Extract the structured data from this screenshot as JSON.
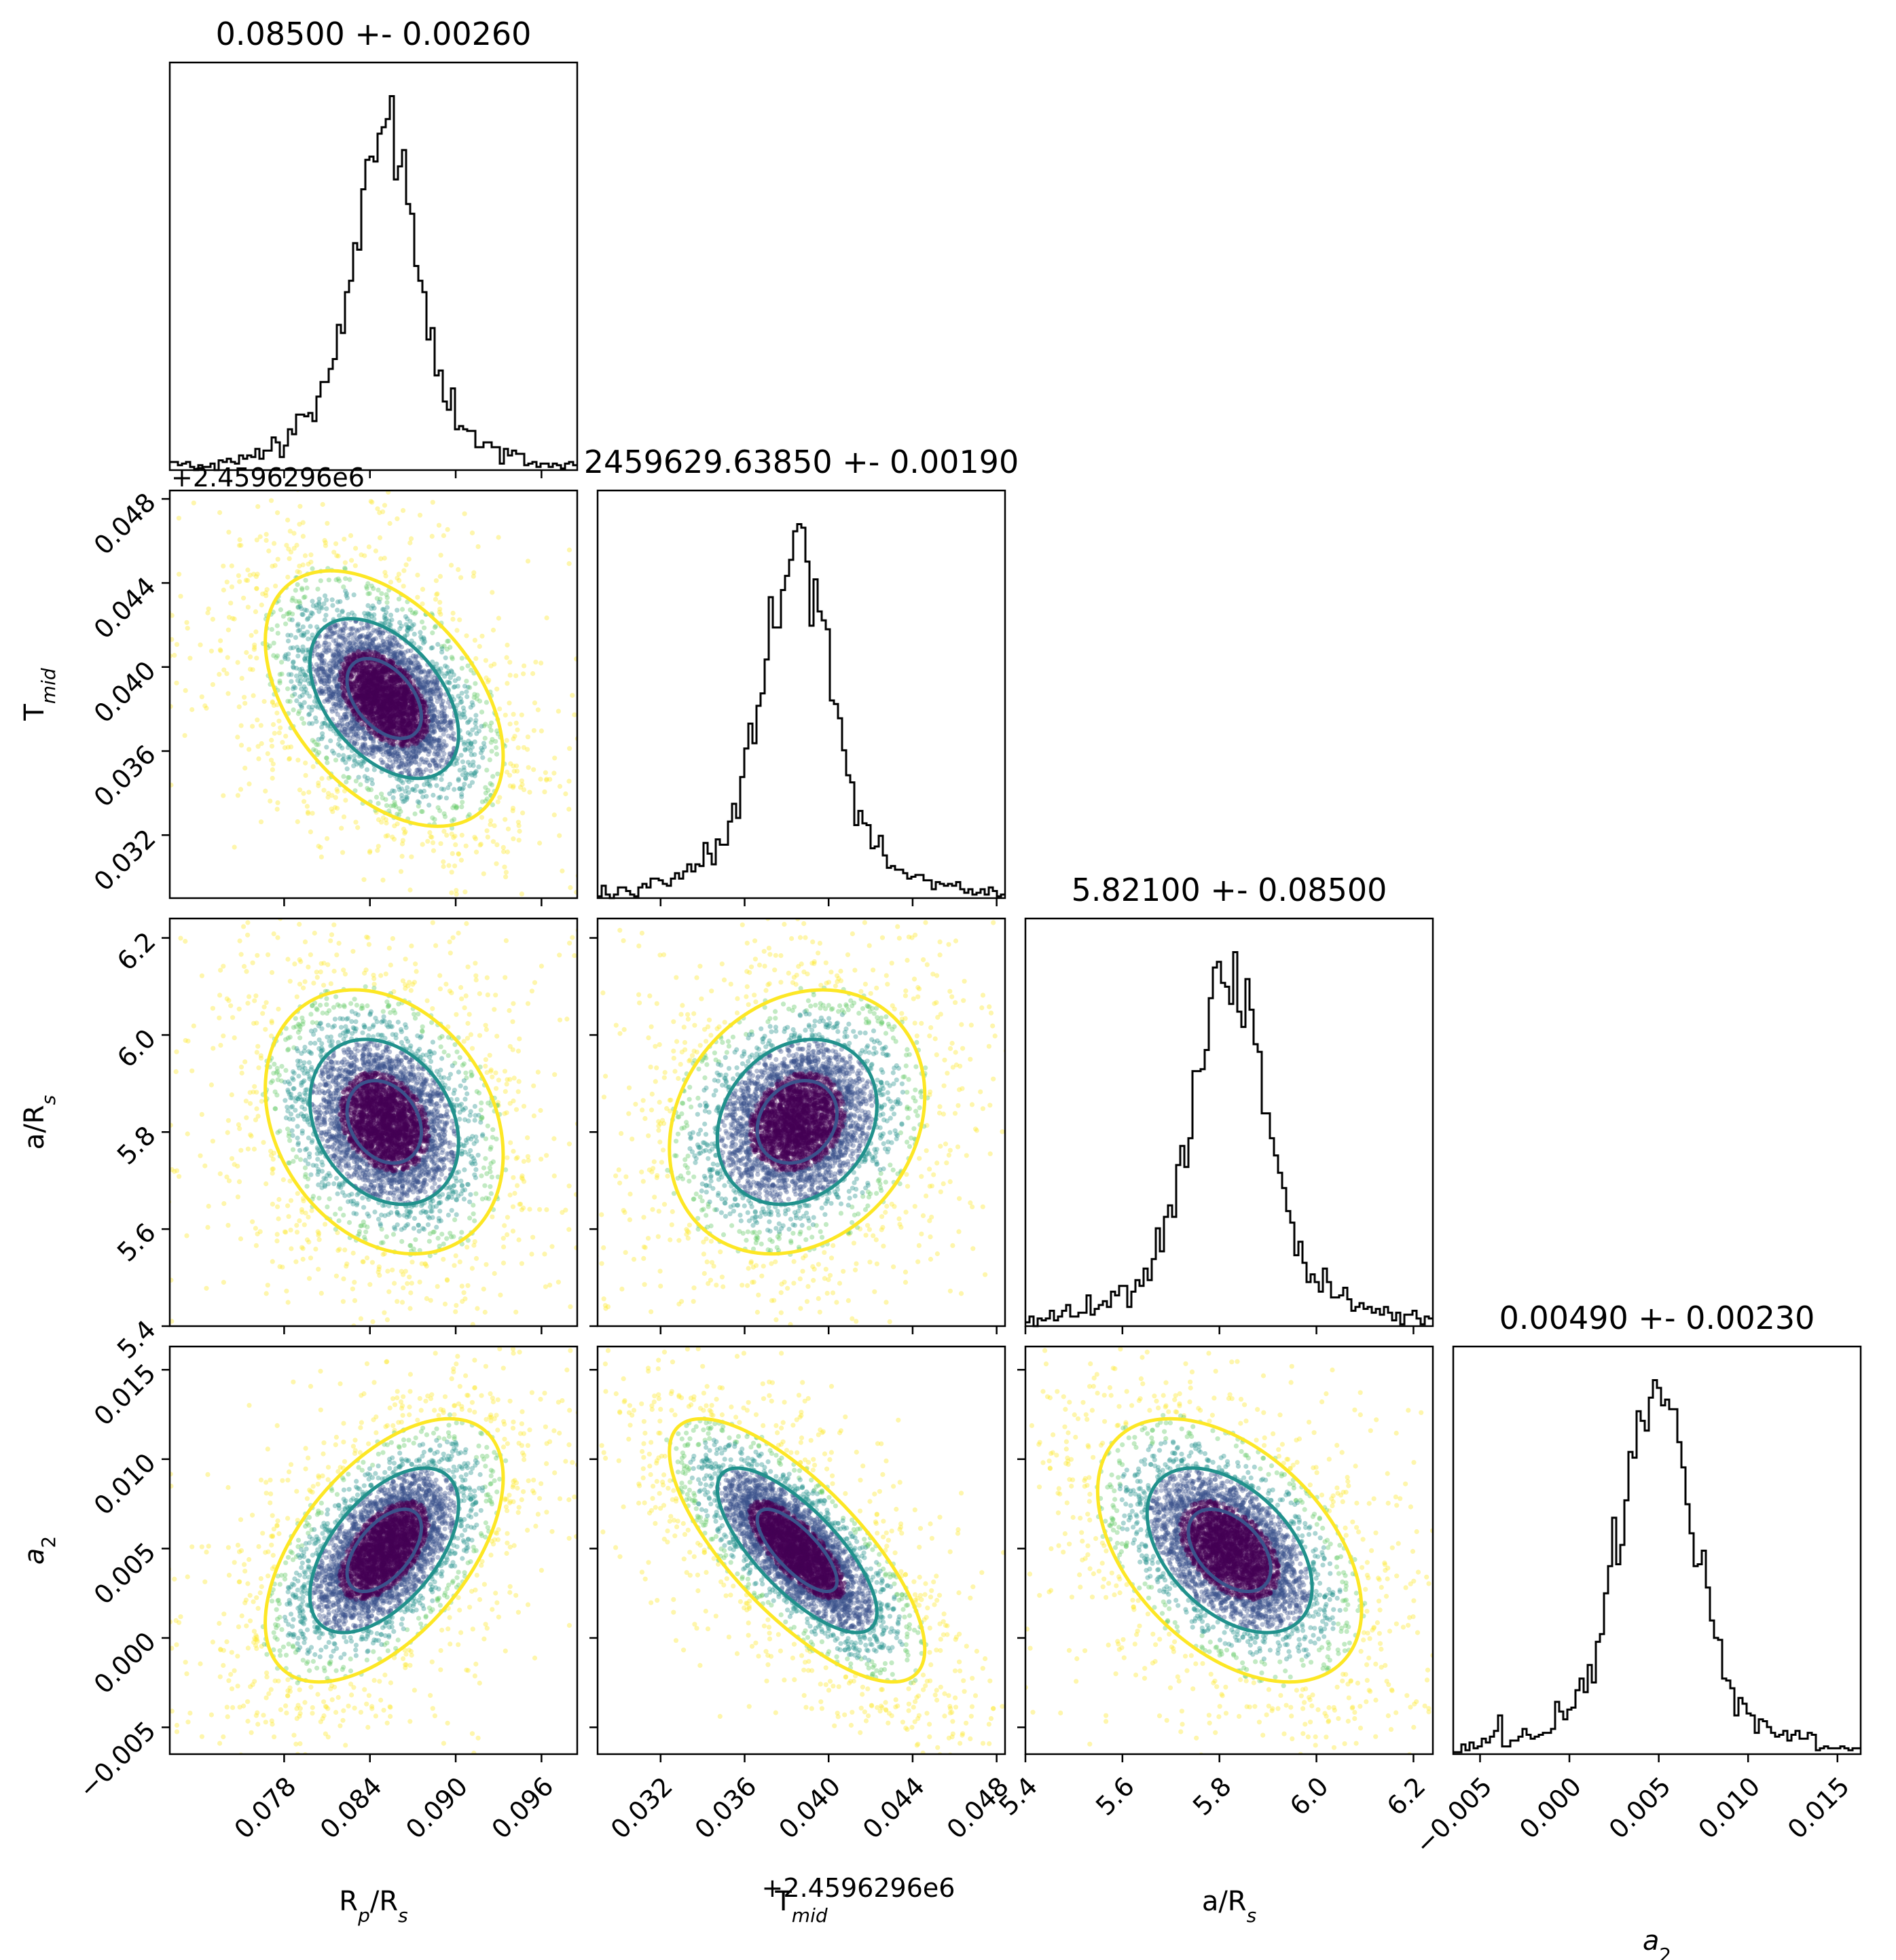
{
  "chart_data": {
    "type": "corner",
    "n_samples": 5000,
    "parameters": [
      {
        "label": "R$_p$/R$_s$",
        "label_main": "R",
        "label_sub1": "p",
        "label_mid": "/R",
        "label_sub2": "s",
        "mean": 0.085,
        "sigma": 0.0026,
        "title": "0.08500 +- 0.00260",
        "range": [
          0.07,
          0.0985
        ],
        "ticks": [
          0.078,
          0.084,
          0.09,
          0.096
        ],
        "tick_labels": [
          "0.078",
          "0.084",
          "0.090",
          "0.096"
        ],
        "offset": ""
      },
      {
        "label": "T$_{mid}$",
        "label_main": "T",
        "label_sub1": "mid",
        "label_mid": "",
        "label_sub2": "",
        "mean": 0.0385,
        "sigma": 0.0019,
        "title": "2459629.63850 +- 0.00190",
        "range": [
          0.029,
          0.0484
        ],
        "ticks": [
          0.032,
          0.036,
          0.04,
          0.044,
          0.048
        ],
        "tick_labels": [
          "0.032",
          "0.036",
          "0.040",
          "0.044",
          "0.048"
        ],
        "offset": "+2.4596296e6"
      },
      {
        "label": "a/R$_s$",
        "label_main": "a/R",
        "label_sub1": "s",
        "label_mid": "",
        "label_sub2": "",
        "mean": 5.821,
        "sigma": 0.085,
        "title": "5.82100 +- 0.08500",
        "range": [
          5.4,
          6.24
        ],
        "ticks": [
          5.4,
          5.6,
          5.8,
          6.0,
          6.2
        ],
        "tick_labels": [
          "5.4",
          "5.6",
          "5.8",
          "6.0",
          "6.2"
        ],
        "offset": ""
      },
      {
        "label": "$a_2$",
        "label_main": "a",
        "label_sub1": "2",
        "label_mid": "",
        "label_sub2": "",
        "mean": 0.0049,
        "sigma": 0.0023,
        "title": "0.00490 +- 0.00230",
        "range": [
          -0.0065,
          0.0163
        ],
        "ticks": [
          -0.005,
          0.0,
          0.005,
          0.01,
          0.015
        ],
        "tick_labels": [
          "−0.005",
          "0.000",
          "0.005",
          "0.010",
          "0.015"
        ],
        "offset": ""
      }
    ],
    "correlations": [
      {
        "pair": [
          1,
          0
        ],
        "rho": -0.45
      },
      {
        "pair": [
          2,
          0
        ],
        "rho": -0.25
      },
      {
        "pair": [
          2,
          1
        ],
        "rho": 0.2
      },
      {
        "pair": [
          3,
          0
        ],
        "rho": 0.55
      },
      {
        "pair": [
          3,
          1
        ],
        "rho": -0.75
      },
      {
        "pair": [
          3,
          2
        ],
        "rho": -0.45
      }
    ],
    "contour_levels": [
      {
        "name": "inner",
        "sigma_scale": 1.0,
        "color": "#3b528b"
      },
      {
        "name": "middle",
        "sigma_scale": 2.0,
        "color": "#21918c"
      },
      {
        "name": "outer",
        "sigma_scale": 3.2,
        "color": "#fde725"
      }
    ],
    "point_colors": [
      "#440154",
      "#3b528b",
      "#21918c",
      "#5ec962",
      "#fde725"
    ],
    "histogram_bins": 100,
    "histogram_style": "step",
    "grid": false,
    "legend": "none"
  }
}
